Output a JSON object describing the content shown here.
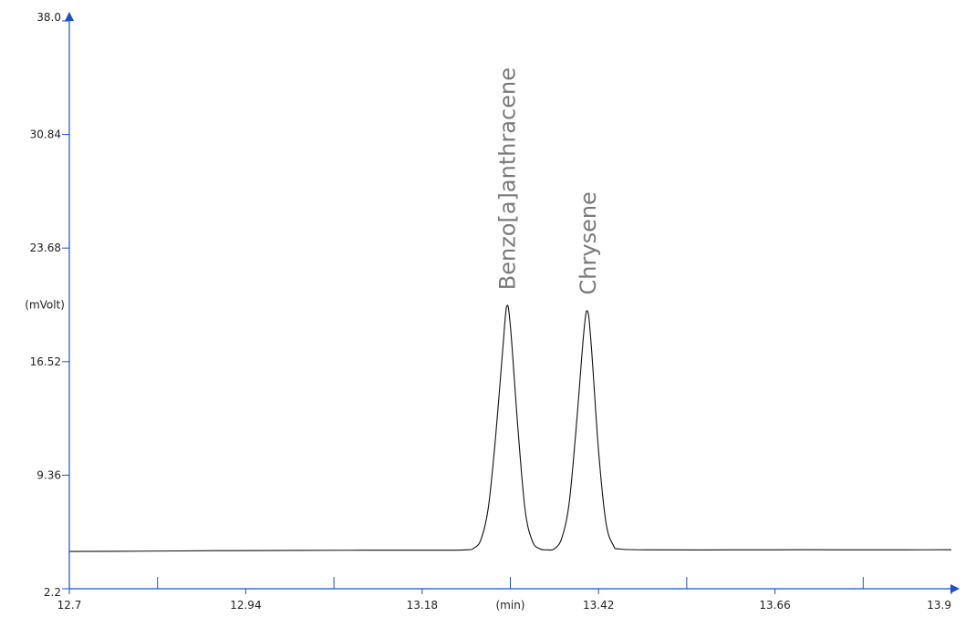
{
  "chart_data": {
    "type": "line",
    "title": "",
    "xlabel": "(min)",
    "ylabel": "(mVolt)",
    "xlim": [
      12.7,
      13.9
    ],
    "ylim": [
      2.2,
      38.0
    ],
    "x_ticks": [
      12.7,
      12.94,
      13.18,
      13.42,
      13.66,
      13.9
    ],
    "x_tick_labels": [
      "12.7",
      "12.94",
      "13.18",
      "13.42",
      "13.66",
      "13.9"
    ],
    "x_minor_ticks": [
      12.82,
      13.06,
      13.3,
      13.54,
      13.78
    ],
    "y_ticks": [
      2.2,
      9.36,
      16.52,
      23.68,
      30.84,
      38.0
    ],
    "y_tick_labels": [
      "2.2",
      "9.36",
      "16.52",
      "23.68",
      "30.84",
      "38.0"
    ],
    "baseline": 4.6,
    "series": [
      {
        "points": [
          [
            12.7,
            4.55
          ],
          [
            12.8,
            4.57
          ],
          [
            12.9,
            4.6
          ],
          [
            13.0,
            4.62
          ],
          [
            13.1,
            4.63
          ],
          [
            13.2,
            4.63
          ],
          [
            13.24,
            4.65
          ],
          [
            13.25,
            4.75
          ],
          [
            13.26,
            5.3
          ],
          [
            13.27,
            7.3
          ],
          [
            13.28,
            11.8
          ],
          [
            13.29,
            17.5
          ],
          [
            13.295,
            20.0
          ],
          [
            13.3,
            18.8
          ],
          [
            13.31,
            12.5
          ],
          [
            13.32,
            7.2
          ],
          [
            13.33,
            5.2
          ],
          [
            13.34,
            4.72
          ],
          [
            13.35,
            4.65
          ],
          [
            13.36,
            4.72
          ],
          [
            13.37,
            5.4
          ],
          [
            13.38,
            7.6
          ],
          [
            13.39,
            12.6
          ],
          [
            13.4,
            18.4
          ],
          [
            13.405,
            19.7
          ],
          [
            13.41,
            17.6
          ],
          [
            13.42,
            10.9
          ],
          [
            13.43,
            6.4
          ],
          [
            13.44,
            4.95
          ],
          [
            13.45,
            4.7
          ],
          [
            13.5,
            4.65
          ],
          [
            13.6,
            4.65
          ],
          [
            13.7,
            4.66
          ],
          [
            13.8,
            4.65
          ],
          [
            13.9,
            4.66
          ]
        ]
      }
    ],
    "annotations": [
      {
        "text": "Benzo[a]anthracene",
        "x": 13.295,
        "y": 20.0
      },
      {
        "text": "Chrysene",
        "x": 13.405,
        "y": 19.7
      }
    ],
    "colors": {
      "axis": "#1f4fc9",
      "line": "#111111",
      "peak_label": "#7a7a7a"
    },
    "grid": false
  }
}
